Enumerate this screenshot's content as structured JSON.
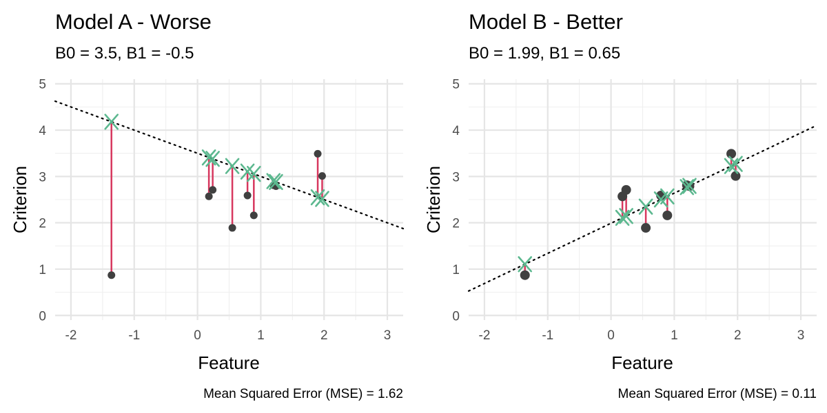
{
  "colors": {
    "residual": "#d7375e",
    "predicted": "#5cb88f",
    "observed": "#404040"
  },
  "chart_data": [
    {
      "type": "scatter",
      "title": "Model A - Worse",
      "subtitle": "B0 = 3.5, B1 = -0.5",
      "xlabel": "Feature",
      "ylabel": "Criterion",
      "caption": "Mean Squared Error (MSE) =  1.62",
      "xlim": [
        -2.25,
        3.25
      ],
      "ylim": [
        -0.1,
        5.1
      ],
      "x_ticks": [
        -2,
        -1,
        0,
        1,
        2,
        3
      ],
      "y_ticks": [
        0,
        1,
        2,
        3,
        4,
        5
      ],
      "line": {
        "intercept": 3.5,
        "slope": -0.5
      },
      "observed": [
        {
          "x": -1.36,
          "y": 0.87
        },
        {
          "x": 0.18,
          "y": 2.57
        },
        {
          "x": 0.24,
          "y": 2.71
        },
        {
          "x": 0.55,
          "y": 1.89
        },
        {
          "x": 0.79,
          "y": 2.59
        },
        {
          "x": 0.89,
          "y": 2.16
        },
        {
          "x": 1.2,
          "y": 2.81
        },
        {
          "x": 1.24,
          "y": 2.79
        },
        {
          "x": 1.9,
          "y": 3.49
        },
        {
          "x": 1.97,
          "y": 3.01
        }
      ],
      "grid": true
    },
    {
      "type": "scatter",
      "title": "Model B - Better",
      "subtitle": "B0 = 1.99, B1 = 0.65",
      "xlabel": "Feature",
      "ylabel": "Criterion",
      "caption": "Mean Squared Error (MSE) =  0.11",
      "xlim": [
        -2.25,
        3.25
      ],
      "ylim": [
        -0.1,
        5.1
      ],
      "x_ticks": [
        -2,
        -1,
        0,
        1,
        2,
        3
      ],
      "y_ticks": [
        0,
        1,
        2,
        3,
        4,
        5
      ],
      "line": {
        "intercept": 1.99,
        "slope": 0.65
      },
      "observed": [
        {
          "x": -1.36,
          "y": 0.87
        },
        {
          "x": 0.18,
          "y": 2.57
        },
        {
          "x": 0.24,
          "y": 2.71
        },
        {
          "x": 0.55,
          "y": 1.89
        },
        {
          "x": 0.79,
          "y": 2.59
        },
        {
          "x": 0.89,
          "y": 2.16
        },
        {
          "x": 1.2,
          "y": 2.81
        },
        {
          "x": 1.24,
          "y": 2.79
        },
        {
          "x": 1.9,
          "y": 3.49
        },
        {
          "x": 1.97,
          "y": 3.01
        }
      ],
      "grid": true
    }
  ]
}
